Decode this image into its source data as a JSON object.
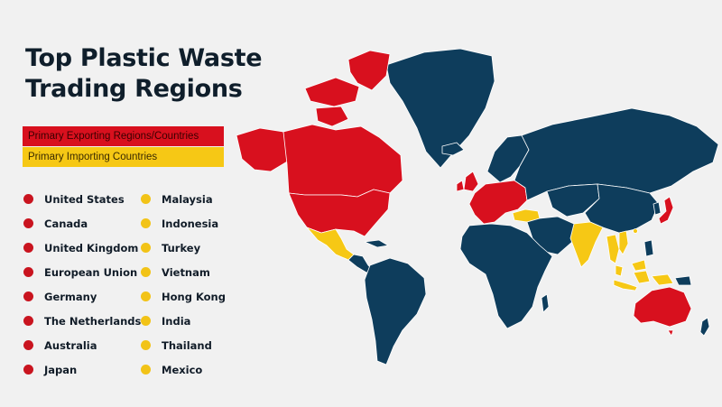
{
  "title": "Top Plastic Waste Trading Regions",
  "legend": {
    "exporting": {
      "label": "Primary Exporting Regions/Countries",
      "color": "#d8101e"
    },
    "importing": {
      "label": "Primary Importing Countries",
      "color": "#f6c815"
    }
  },
  "exporting_countries": [
    "United States",
    "Canada",
    "United Kingdom",
    "European Union",
    "Germany",
    "The Netherlands",
    "Australia",
    "Japan"
  ],
  "importing_countries": [
    "Malaysia",
    "Indonesia",
    "Turkey",
    "Vietnam",
    "Hong Kong",
    "India",
    "Thailand",
    "Mexico"
  ],
  "colors": {
    "background": "#f1f1f1",
    "other_land": "#0e3d5c",
    "exporting": "#d8101e",
    "importing": "#f6c815",
    "border": "#ffffff"
  }
}
